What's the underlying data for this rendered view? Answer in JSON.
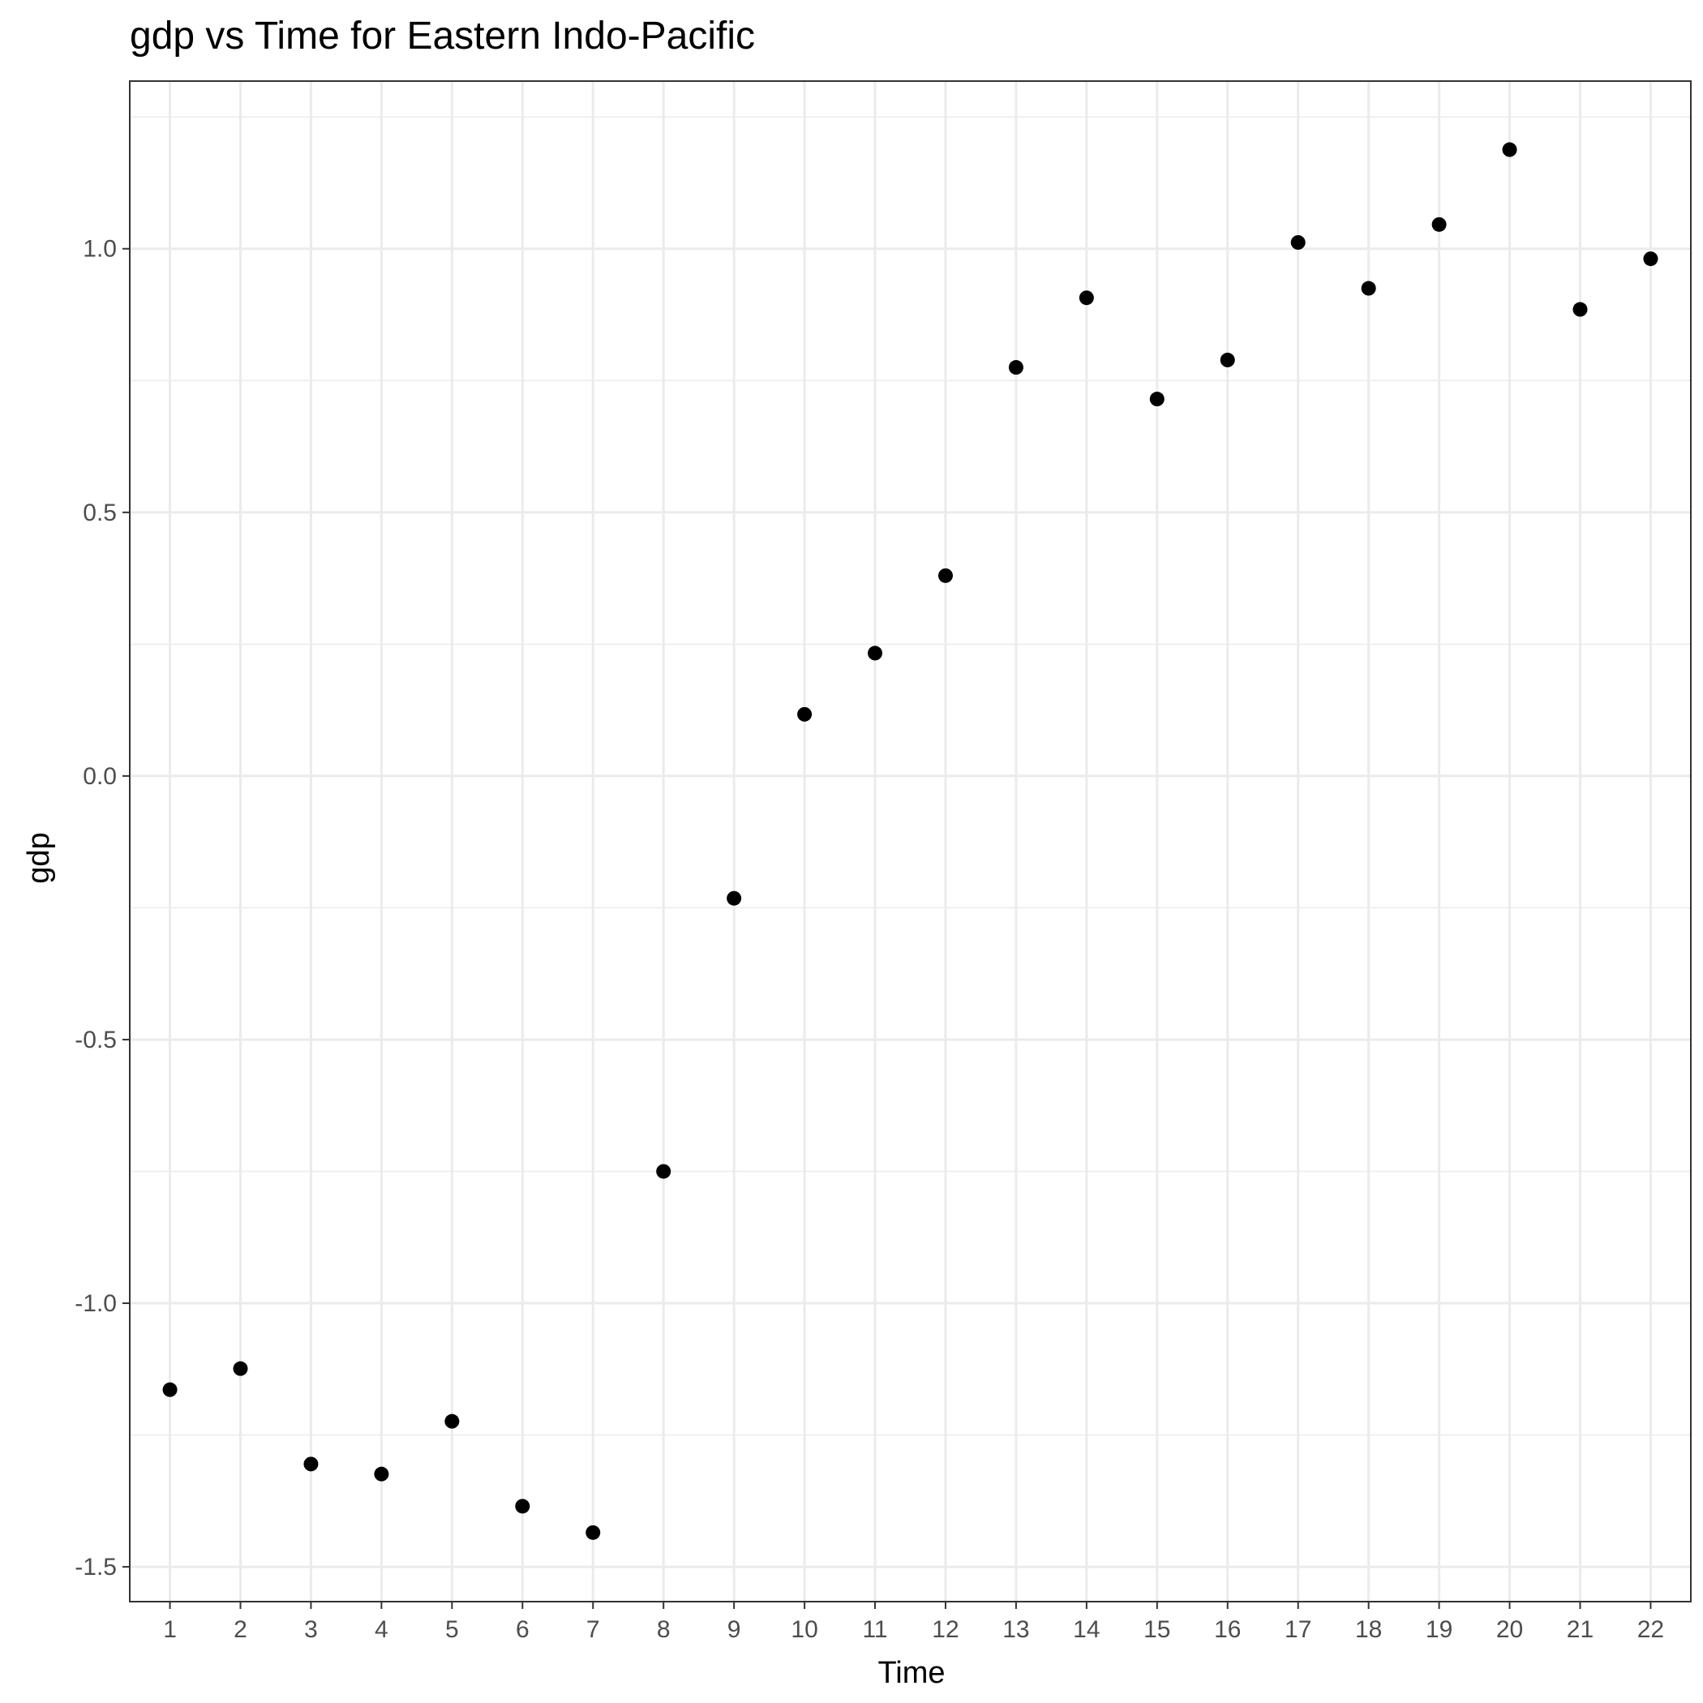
{
  "chart_data": {
    "type": "scatter",
    "title": "gdp  vs Time for Eastern Indo-Pacific",
    "xlabel": "Time",
    "ylabel": "gdp",
    "x": [
      1,
      2,
      3,
      4,
      5,
      6,
      7,
      8,
      9,
      10,
      11,
      12,
      13,
      14,
      15,
      16,
      17,
      18,
      19,
      20,
      21,
      22
    ],
    "y": [
      -1.164,
      -1.124,
      -1.305,
      -1.324,
      -1.224,
      -1.385,
      -1.435,
      -0.75,
      -0.232,
      0.117,
      0.233,
      0.38,
      0.775,
      0.907,
      0.715,
      0.789,
      1.012,
      0.925,
      1.046,
      1.188,
      0.885,
      0.981
    ],
    "x_ticks": [
      "1",
      "2",
      "3",
      "4",
      "5",
      "6",
      "7",
      "8",
      "9",
      "10",
      "11",
      "12",
      "13",
      "14",
      "15",
      "16",
      "17",
      "18",
      "19",
      "20",
      "21",
      "22"
    ],
    "y_ticks": [
      {
        "value": -1.5,
        "label": "-1.5"
      },
      {
        "value": -1.0,
        "label": "-1.0"
      },
      {
        "value": -0.5,
        "label": "-0.5"
      },
      {
        "value": 0.0,
        "label": "0.0"
      },
      {
        "value": 0.5,
        "label": "0.5"
      },
      {
        "value": 1.0,
        "label": "1.0"
      }
    ],
    "xlim": [
      0.43,
      22.57
    ],
    "ylim": [
      -1.566,
      1.318
    ],
    "grid": true,
    "point_color": "#000000",
    "grid_color": "#ebebeb",
    "panel_border_color": "#333333"
  }
}
